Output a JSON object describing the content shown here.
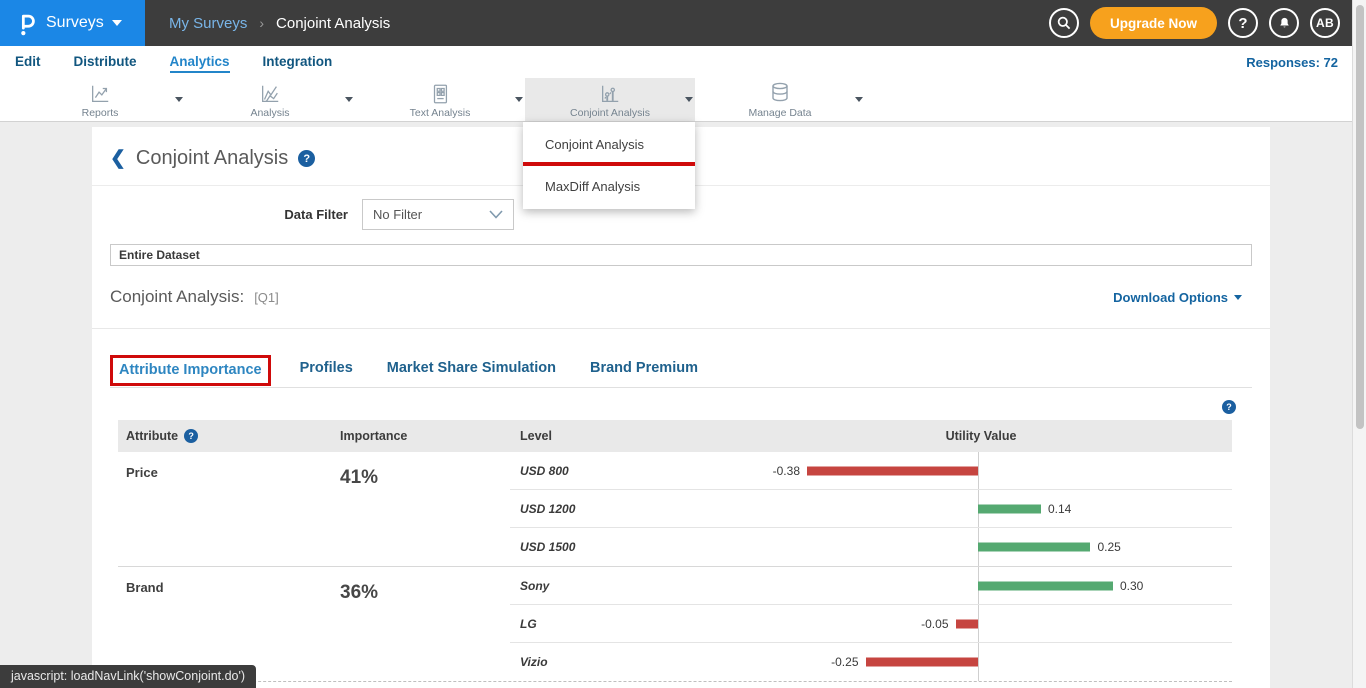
{
  "topbar": {
    "brand": {
      "product": "Surveys"
    },
    "breadcrumb": {
      "parent": "My Surveys",
      "separator": "›",
      "current": "Conjoint Analysis"
    },
    "actions": {
      "upgrade_label": "Upgrade Now",
      "help_glyph": "?",
      "avatar_initials": "AB"
    }
  },
  "nav": {
    "items": [
      {
        "label": "Edit",
        "active": false
      },
      {
        "label": "Distribute",
        "active": false
      },
      {
        "label": "Analytics",
        "active": true
      },
      {
        "label": "Integration",
        "active": false
      }
    ],
    "responses_label": "Responses: 72"
  },
  "toolbar": {
    "items": [
      {
        "label": "Reports",
        "icon": "reports-icon",
        "active": false
      },
      {
        "label": "Analysis",
        "icon": "analysis-icon",
        "active": false
      },
      {
        "label": "Text Analysis",
        "icon": "text-analysis-icon",
        "active": false
      },
      {
        "label": "Conjoint Analysis",
        "icon": "conjoint-analysis-icon",
        "active": true
      },
      {
        "label": "Manage Data",
        "icon": "manage-data-icon",
        "active": false
      }
    ]
  },
  "dropdown": {
    "items": [
      {
        "label": "Conjoint Analysis",
        "annotated": true
      },
      {
        "label": "MaxDiff Analysis",
        "annotated": false
      }
    ]
  },
  "content": {
    "page_title": "Conjoint Analysis",
    "help_glyph": "?",
    "data_filter_label": "Data Filter",
    "data_filter_value": "No Filter",
    "dataset_value": "Entire Dataset",
    "section_title": "Conjoint Analysis:",
    "section_ref": "[Q1]",
    "download_label": "Download Options",
    "tabs": [
      {
        "label": "Attribute Importance",
        "active": true,
        "annotated": true
      },
      {
        "label": "Profiles",
        "active": false,
        "annotated": false
      },
      {
        "label": "Market Share Simulation",
        "active": false,
        "annotated": false
      },
      {
        "label": "Brand Premium",
        "active": false,
        "annotated": false
      }
    ]
  },
  "chart_data": {
    "type": "bar",
    "title": "Conjoint Analysis [Q1] — Attribute Importance",
    "columns": [
      "Attribute",
      "Importance",
      "Level",
      "Utility Value"
    ],
    "groups": [
      {
        "attribute": "Price",
        "importance": "41%",
        "levels": [
          {
            "name": "USD 800",
            "utility": -0.38
          },
          {
            "name": "USD 1200",
            "utility": 0.14
          },
          {
            "name": "USD 1500",
            "utility": 0.25
          }
        ]
      },
      {
        "attribute": "Brand",
        "importance": "36%",
        "levels": [
          {
            "name": "Sony",
            "utility": 0.3
          },
          {
            "name": "LG",
            "utility": -0.05
          },
          {
            "name": "Vizio",
            "utility": -0.25
          }
        ]
      }
    ],
    "colors": {
      "positive": "#55a971",
      "negative": "#c64540",
      "annotation": "#cf0a0a",
      "brand_blue": "#1b87e6"
    },
    "axis": {
      "zero_line": true,
      "orientation": "horizontal"
    }
  },
  "statusbar": {
    "text": "javascript: loadNavLink('showConjoint.do')"
  }
}
